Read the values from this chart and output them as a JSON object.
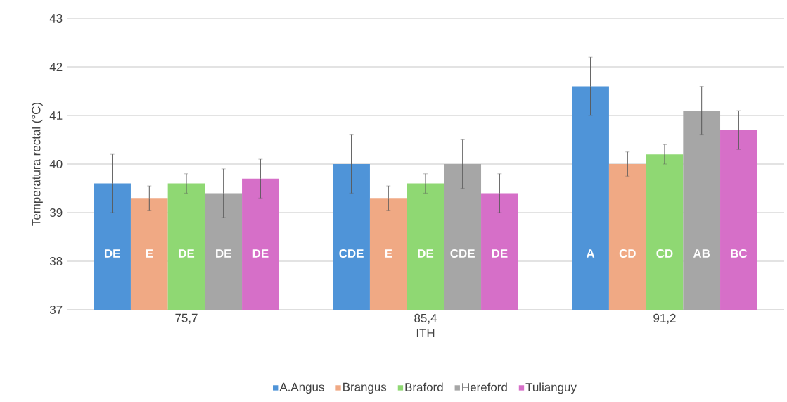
{
  "chart_data": {
    "type": "bar",
    "xlabel": "ITH",
    "ylabel": "Temperatura rectal (°C)",
    "categories": [
      "75,7",
      "85,4",
      "91,2"
    ],
    "series": [
      {
        "name": "A.Angus",
        "color": "#4f94d8",
        "values": [
          39.6,
          40.0,
          41.6
        ],
        "errors": [
          0.6,
          0.6,
          0.6
        ],
        "value_labels": [
          "DE",
          "CDE",
          "A"
        ]
      },
      {
        "name": "Brangus",
        "color": "#f0a984",
        "values": [
          39.3,
          39.3,
          40.0
        ],
        "errors": [
          0.25,
          0.25,
          0.25
        ],
        "value_labels": [
          "E",
          "E",
          "CD"
        ]
      },
      {
        "name": "Braford",
        "color": "#8fd873",
        "values": [
          39.6,
          39.6,
          40.2
        ],
        "errors": [
          0.2,
          0.2,
          0.2
        ],
        "value_labels": [
          "DE",
          "DE",
          "CD"
        ]
      },
      {
        "name": "Hereford",
        "color": "#a6a6a6",
        "values": [
          39.4,
          40.0,
          41.1
        ],
        "errors": [
          0.5,
          0.5,
          0.5
        ],
        "value_labels": [
          "DE",
          "CDE",
          "AB"
        ]
      },
      {
        "name": "Tulianguy",
        "color": "#d66fc8",
        "values": [
          39.7,
          39.4,
          40.7
        ],
        "errors": [
          0.4,
          0.4,
          0.4
        ],
        "value_labels": [
          "DE",
          "DE",
          "BC"
        ]
      }
    ],
    "ylim": [
      37,
      43
    ],
    "yticks": [
      37,
      38,
      39,
      40,
      41,
      42,
      43
    ],
    "grid": "y",
    "legend": "bottom"
  }
}
